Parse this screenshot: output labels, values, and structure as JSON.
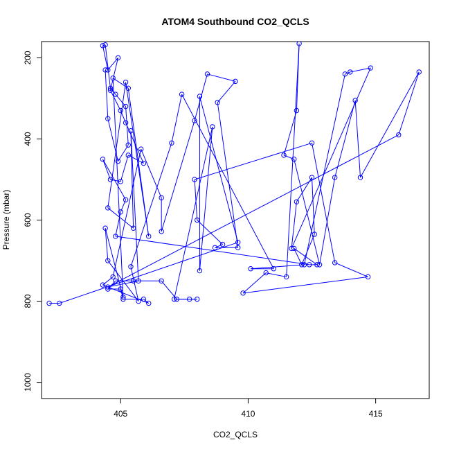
{
  "chart_data": {
    "type": "line",
    "title": "ATOM4 Southbound CO2_QCLS",
    "xlabel": "CO2_QCLS",
    "ylabel": "Pressure (mbar)",
    "xlim": [
      401.9,
      417.1
    ],
    "ylim": [
      1040,
      160
    ],
    "y_reversed": true,
    "x_ticks": [
      405,
      410,
      415
    ],
    "y_ticks": [
      200,
      400,
      600,
      800,
      1000
    ],
    "grid": false,
    "legend": "none",
    "series_color": "#0000ff",
    "marker": "open-circle",
    "series": [
      {
        "name": "",
        "points": [
          [
            402.2,
            805
          ],
          [
            402.6,
            805
          ],
          [
            409.6,
            655
          ],
          [
            408.1,
            295
          ],
          [
            408.1,
            725
          ],
          [
            408.6,
            370
          ],
          [
            407.1,
            795
          ],
          [
            408.0,
            795
          ],
          [
            407.7,
            795
          ],
          [
            407.2,
            795
          ],
          [
            406.6,
            750
          ],
          [
            405.5,
            750
          ],
          [
            404.8,
            750
          ],
          [
            404.5,
            770
          ],
          [
            405.0,
            770
          ],
          [
            405.1,
            795
          ],
          [
            405.9,
            795
          ],
          [
            406.1,
            805
          ],
          [
            404.3,
            760
          ],
          [
            404.7,
            740
          ],
          [
            405.8,
            425
          ],
          [
            406.6,
            545
          ],
          [
            406.6,
            628
          ],
          [
            407.9,
            355
          ],
          [
            408.4,
            240
          ],
          [
            409.5,
            258
          ],
          [
            408.8,
            310
          ],
          [
            409.6,
            668
          ],
          [
            408.7,
            668
          ],
          [
            409.0,
            660
          ],
          [
            408.0,
            600
          ],
          [
            407.9,
            500
          ],
          [
            412.5,
            410
          ],
          [
            413.4,
            705
          ],
          [
            414.7,
            740
          ],
          [
            409.8,
            780
          ],
          [
            410.7,
            730
          ],
          [
            411.5,
            740
          ],
          [
            412.0,
            165
          ],
          [
            411.9,
            330
          ],
          [
            411.4,
            440
          ],
          [
            411.8,
            450
          ],
          [
            412.8,
            710
          ],
          [
            413.4,
            495
          ],
          [
            414.2,
            305
          ],
          [
            414.4,
            495
          ],
          [
            416.7,
            235
          ],
          [
            415.9,
            390
          ],
          [
            404.5,
            765
          ],
          [
            405.7,
            750
          ],
          [
            405.4,
            380
          ],
          [
            405.5,
            620
          ],
          [
            404.5,
            570
          ],
          [
            405.2,
            260
          ],
          [
            406.1,
            640
          ],
          [
            405.3,
            275
          ],
          [
            404.7,
            250
          ],
          [
            405.1,
            790
          ],
          [
            404.4,
            620
          ],
          [
            404.5,
            700
          ],
          [
            405.7,
            800
          ],
          [
            405.4,
            715
          ],
          [
            407.0,
            410
          ],
          [
            407.4,
            290
          ],
          [
            411.0,
            720
          ],
          [
            410.1,
            720
          ],
          [
            412.2,
            710
          ],
          [
            413.8,
            240
          ],
          [
            414.0,
            235
          ],
          [
            414.8,
            225
          ],
          [
            411.7,
            670
          ],
          [
            411.9,
            555
          ],
          [
            412.5,
            495
          ],
          [
            412.6,
            635
          ],
          [
            412.1,
            710
          ],
          [
            411.8,
            670
          ],
          [
            412.7,
            710
          ],
          [
            412.4,
            710
          ],
          [
            404.8,
            640
          ],
          [
            405.0,
            580
          ],
          [
            405.2,
            550
          ],
          [
            404.3,
            450
          ],
          [
            404.6,
            500
          ],
          [
            405.0,
            505
          ],
          [
            405.3,
            440
          ],
          [
            405.9,
            460
          ],
          [
            405.2,
            360
          ],
          [
            405.0,
            330
          ],
          [
            404.6,
            280
          ],
          [
            404.9,
            200
          ],
          [
            404.5,
            230
          ],
          [
            404.3,
            170
          ],
          [
            404.4,
            168
          ],
          [
            404.6,
            275
          ],
          [
            404.8,
            290
          ],
          [
            405.2,
            320
          ],
          [
            405.3,
            415
          ],
          [
            404.9,
            455
          ],
          [
            404.5,
            350
          ],
          [
            404.4,
            230
          ]
        ]
      }
    ]
  }
}
